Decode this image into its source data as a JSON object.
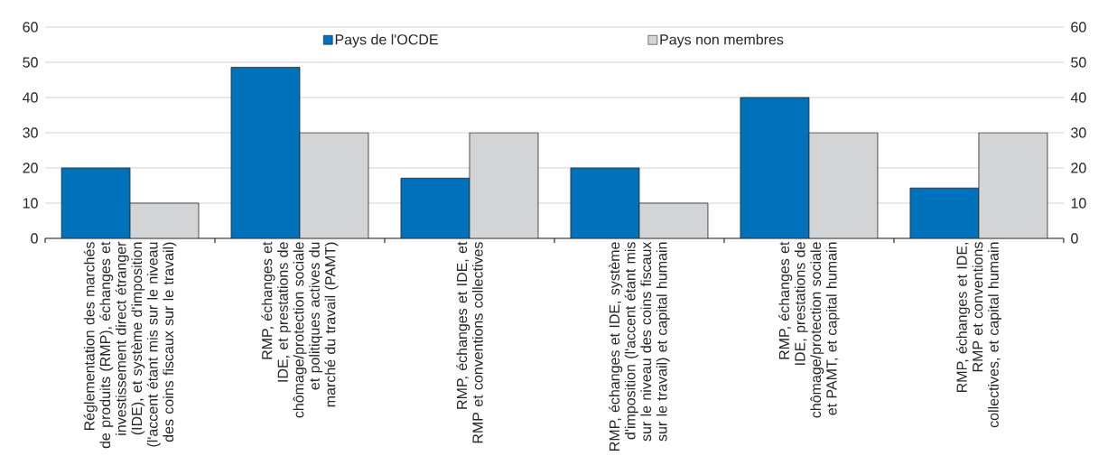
{
  "chart_data": {
    "type": "bar",
    "categories": [
      "Réglementation des marchés de produits (RMP), échanges et investissement direct étranger (IDE), et système d'imposition (l'accent étant mis sur le niveau des coins fiscaux sur le travail)",
      "RMP, échanges et IDE, et prestations de chômage/protection sociale et politiques actives du marché du travail (PAMT)",
      "RMP, échanges et IDE, et RMP et conventions collectives",
      "RMP, échanges et IDE, système d'imposition (l'accent étant mis sur le niveau des coins fiscaux sur le travail) et capital humain",
      "RMP, échanges et IDE, prestations de chômage/protection sociale et PAMT, et capital humain",
      "RMP, échanges et IDE, RMP et conventions collectives, et capital humain"
    ],
    "series": [
      {
        "name": "Pays de l'OCDE",
        "color": "#0072bc",
        "values": [
          20,
          48.6,
          17.1,
          20,
          40,
          14.3
        ]
      },
      {
        "name": "Pays non membres",
        "color": "#d3d4d6",
        "values": [
          10,
          30,
          30,
          10,
          30,
          30
        ]
      }
    ],
    "ylim": [
      0,
      60
    ],
    "yticks": [
      0,
      10,
      20,
      30,
      40,
      50,
      60
    ],
    "y2lim": [
      0,
      60
    ],
    "y2ticks": [
      0,
      10,
      20,
      30,
      40,
      50,
      60
    ],
    "grid": "y",
    "legend": "top"
  }
}
